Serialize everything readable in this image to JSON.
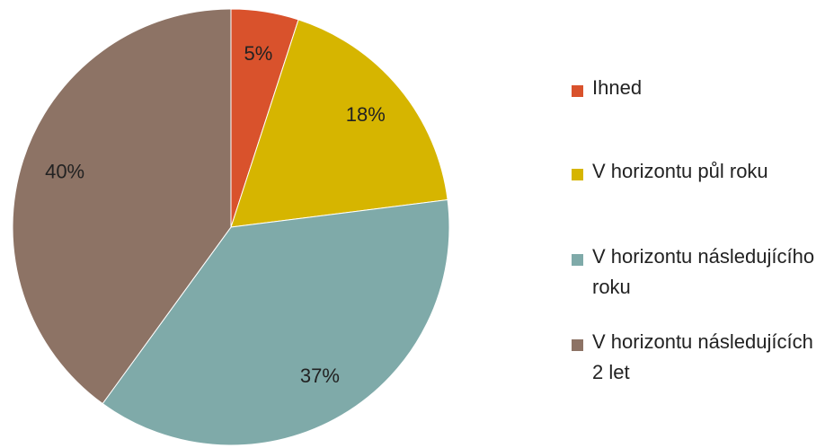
{
  "chart_data": {
    "type": "pie",
    "categories": [
      "Ihned",
      "V horizontu půl roku",
      "V horizontu následujícího roku",
      "V horizontu následujících 2 let"
    ],
    "values": [
      5,
      18,
      37,
      40
    ],
    "value_labels": [
      "5%",
      "18%",
      "37%",
      "40%"
    ],
    "colors": [
      "#d9522c",
      "#d6b500",
      "#7faaa9",
      "#8d7365"
    ],
    "legend": "right"
  }
}
